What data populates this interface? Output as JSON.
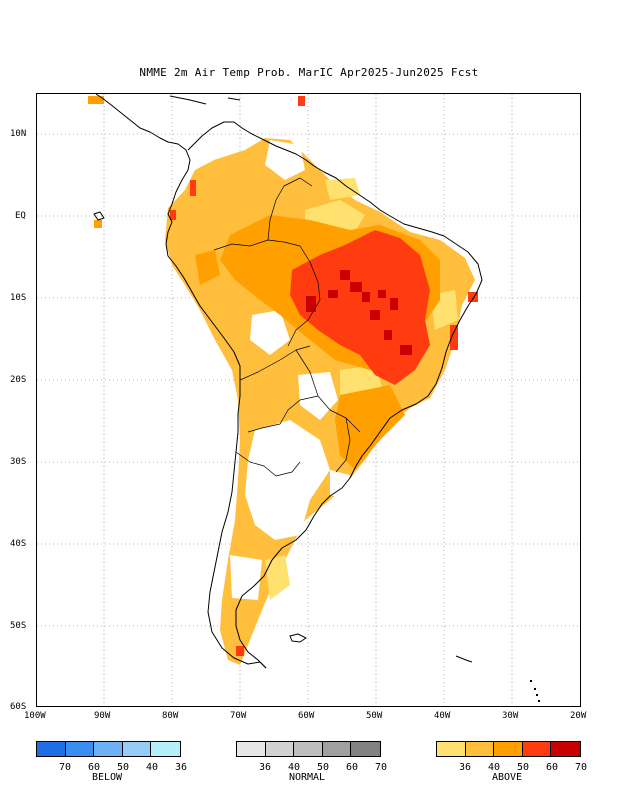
{
  "title": "NMME 2m Air Temp Prob. MarIC  Apr2025-Jun2025 Fcst",
  "axes": {
    "lat_labels": [
      "10N",
      "EQ",
      "10S",
      "20S",
      "30S",
      "40S",
      "50S",
      "60S"
    ],
    "lon_labels": [
      "100W",
      "90W",
      "80W",
      "70W",
      "60W",
      "50W",
      "40W",
      "30W",
      "20W"
    ],
    "lon_range": [
      -100,
      -20
    ],
    "lat_range": [
      -60,
      14
    ],
    "grid": "dotted"
  },
  "legend": {
    "below": {
      "name": "BELOW",
      "ticks": [
        "70",
        "60",
        "50",
        "40",
        "36"
      ],
      "colors": [
        "#1e6fe6",
        "#3a8ef0",
        "#6eb0f4",
        "#96cdf8",
        "#b4f0fa"
      ]
    },
    "normal": {
      "name": "NORMAL",
      "ticks": [
        "36",
        "40",
        "50",
        "60",
        "70"
      ],
      "colors": [
        "#e6e6e6",
        "#d2d2d2",
        "#bebebe",
        "#a0a0a0",
        "#828282"
      ]
    },
    "above": {
      "name": "ABOVE",
      "ticks": [
        "36",
        "40",
        "50",
        "60",
        "70"
      ],
      "colors": [
        "#ffe170",
        "#ffbe3c",
        "#ffa000",
        "#ff3c10",
        "#c80000"
      ]
    }
  }
}
